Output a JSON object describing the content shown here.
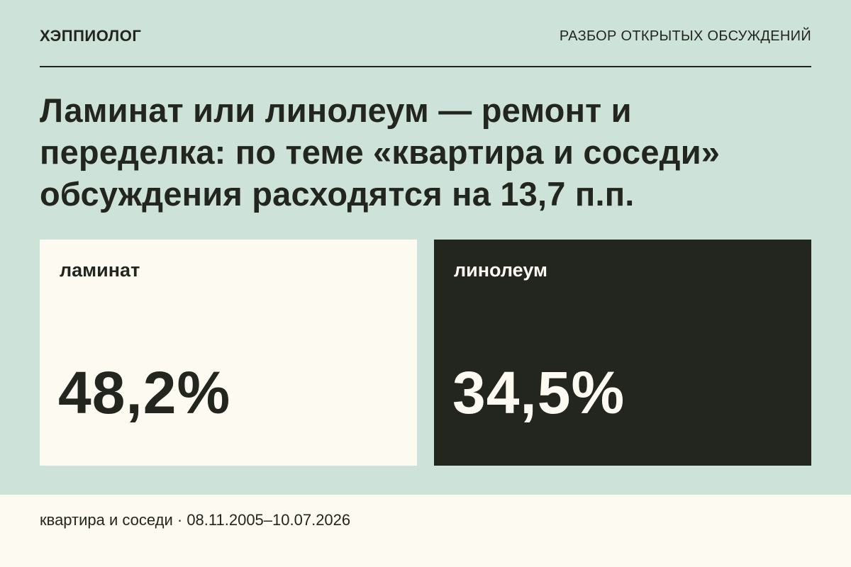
{
  "header": {
    "brand": "ХЭППИОЛОГ",
    "section": "РАЗБОР ОТКРЫТЫХ ОБСУЖДЕНИЙ"
  },
  "headline": {
    "lines": [
      "Ламинат или линолеум — ремонт и",
      "переделка: по теме «квартира и соседи»",
      "обсуждения расходятся на 13,7 п.п."
    ]
  },
  "cards": [
    {
      "label": "ламинат",
      "value": "48,2%"
    },
    {
      "label": "линолеум",
      "value": "34,5%"
    }
  ],
  "footer": {
    "text": "квартира и соседи · 08.11.2005–10.07.2026"
  }
}
